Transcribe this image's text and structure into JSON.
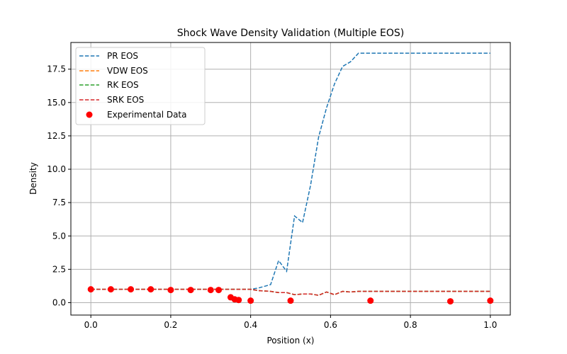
{
  "chart_data": {
    "type": "line",
    "title": "Shock Wave Density Validation (Multiple EOS)",
    "xlabel": "Position (x)",
    "ylabel": "Density",
    "xlim": [
      -0.05,
      1.05
    ],
    "ylim": [
      -0.93,
      19.5
    ],
    "xticks": [
      0.0,
      0.2,
      0.4,
      0.6,
      0.8,
      1.0
    ],
    "xtick_labels": [
      "0.0",
      "0.2",
      "0.4",
      "0.6",
      "0.8",
      "1.0"
    ],
    "yticks": [
      0.0,
      2.5,
      5.0,
      7.5,
      10.0,
      12.5,
      15.0,
      17.5
    ],
    "ytick_labels": [
      "0.0",
      "2.5",
      "5.0",
      "7.5",
      "10.0",
      "12.5",
      "15.0",
      "17.5"
    ],
    "grid": true,
    "legend_position": "top-left",
    "series": [
      {
        "name": "PR EOS",
        "color": "#1f77b4",
        "style": "dashed",
        "x": [
          0.0,
          0.05,
          0.1,
          0.15,
          0.2,
          0.25,
          0.3,
          0.35,
          0.4,
          0.42,
          0.45,
          0.47,
          0.49,
          0.51,
          0.53,
          0.55,
          0.57,
          0.59,
          0.61,
          0.63,
          0.65,
          0.67,
          0.7,
          0.8,
          0.9,
          1.0
        ],
        "y": [
          1.0,
          1.0,
          1.0,
          1.0,
          1.0,
          1.0,
          1.0,
          1.0,
          1.0,
          1.1,
          1.35,
          3.15,
          2.35,
          6.5,
          6.0,
          8.8,
          12.4,
          14.6,
          16.4,
          17.7,
          18.05,
          18.7,
          18.7,
          18.7,
          18.7,
          18.7
        ]
      },
      {
        "name": "VDW EOS",
        "color": "#ff7f0e",
        "style": "dashed",
        "x": [
          0.0,
          0.05,
          0.1,
          0.15,
          0.2,
          0.25,
          0.3,
          0.35,
          0.4,
          0.42,
          0.45,
          0.47,
          0.49,
          0.51,
          0.53,
          0.55,
          0.57,
          0.59,
          0.61,
          0.63,
          0.65,
          0.67,
          0.7,
          0.8,
          0.9,
          1.0
        ],
        "y": [
          1.0,
          1.0,
          1.0,
          1.0,
          1.0,
          1.0,
          1.0,
          1.0,
          1.0,
          0.9,
          0.85,
          0.75,
          0.75,
          0.6,
          0.65,
          0.65,
          0.55,
          0.8,
          0.6,
          0.85,
          0.8,
          0.85,
          0.85,
          0.85,
          0.85,
          0.85
        ]
      },
      {
        "name": "RK EOS",
        "color": "#2ca02c",
        "style": "dashed",
        "x": [
          0.0,
          0.05,
          0.1,
          0.15,
          0.2,
          0.25,
          0.3,
          0.35,
          0.4,
          0.42,
          0.45,
          0.47,
          0.49,
          0.51,
          0.53,
          0.55,
          0.57,
          0.59,
          0.61,
          0.63,
          0.65,
          0.67,
          0.7,
          0.8,
          0.9,
          1.0
        ],
        "y": [
          1.0,
          1.0,
          1.0,
          1.0,
          1.0,
          1.0,
          1.0,
          1.0,
          1.0,
          0.9,
          0.85,
          0.75,
          0.75,
          0.6,
          0.65,
          0.65,
          0.55,
          0.8,
          0.6,
          0.85,
          0.8,
          0.85,
          0.85,
          0.85,
          0.85,
          0.85
        ]
      },
      {
        "name": "SRK EOS",
        "color": "#d62728",
        "style": "dashed",
        "x": [
          0.0,
          0.05,
          0.1,
          0.15,
          0.2,
          0.25,
          0.3,
          0.35,
          0.4,
          0.42,
          0.45,
          0.47,
          0.49,
          0.51,
          0.53,
          0.55,
          0.57,
          0.59,
          0.61,
          0.63,
          0.65,
          0.67,
          0.7,
          0.8,
          0.9,
          1.0
        ],
        "y": [
          1.0,
          1.0,
          1.0,
          1.0,
          1.0,
          1.0,
          1.0,
          1.0,
          1.0,
          0.9,
          0.85,
          0.75,
          0.75,
          0.6,
          0.65,
          0.65,
          0.55,
          0.8,
          0.6,
          0.85,
          0.8,
          0.85,
          0.85,
          0.85,
          0.85,
          0.85
        ]
      }
    ],
    "scatter": {
      "name": "Experimental Data",
      "color": "#ff0000",
      "x": [
        0.0,
        0.05,
        0.1,
        0.15,
        0.2,
        0.25,
        0.3,
        0.32,
        0.35,
        0.36,
        0.37,
        0.4,
        0.5,
        0.7,
        0.9,
        1.0
      ],
      "y": [
        1.0,
        1.0,
        1.0,
        1.0,
        0.95,
        0.95,
        0.95,
        0.95,
        0.4,
        0.25,
        0.2,
        0.15,
        0.15,
        0.15,
        0.1,
        0.15
      ]
    }
  }
}
